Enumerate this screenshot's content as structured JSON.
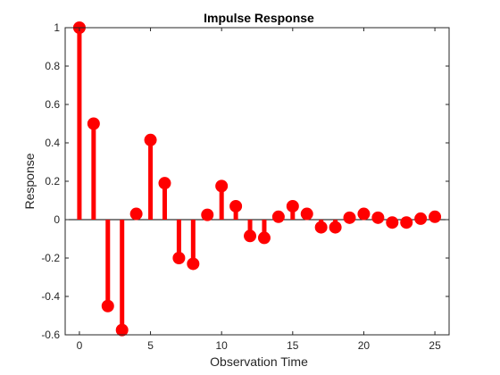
{
  "chart_data": {
    "type": "stem",
    "title": "Impulse Response",
    "xlabel": "Observation Time",
    "ylabel": "Response",
    "xlim": [
      -1,
      26
    ],
    "ylim": [
      -0.6,
      1
    ],
    "xticks": [
      0,
      5,
      10,
      15,
      20,
      25
    ],
    "yticks": [
      -0.6,
      -0.4,
      -0.2,
      0,
      0.2,
      0.4,
      0.6,
      0.8,
      1
    ],
    "ytick_labels": [
      "-0.6",
      "-0.4",
      "-0.2",
      "0",
      "0.2",
      "0.4",
      "0.6",
      "0.8",
      "1"
    ],
    "color": "#ff0000",
    "grid": false,
    "series": [
      {
        "x": [
          0,
          1,
          2,
          3,
          4,
          5,
          6,
          7,
          8,
          9,
          10,
          11,
          12,
          13,
          14,
          15,
          16,
          17,
          18,
          19,
          20,
          21,
          22,
          23,
          24,
          25
        ],
        "values": [
          1.0,
          0.5,
          -0.45,
          -0.575,
          0.03,
          0.415,
          0.19,
          -0.2,
          -0.23,
          0.025,
          0.175,
          0.07,
          -0.085,
          -0.095,
          0.015,
          0.07,
          0.03,
          -0.04,
          -0.04,
          0.01,
          0.03,
          0.01,
          -0.015,
          -0.015,
          0.005,
          0.015
        ]
      }
    ]
  }
}
